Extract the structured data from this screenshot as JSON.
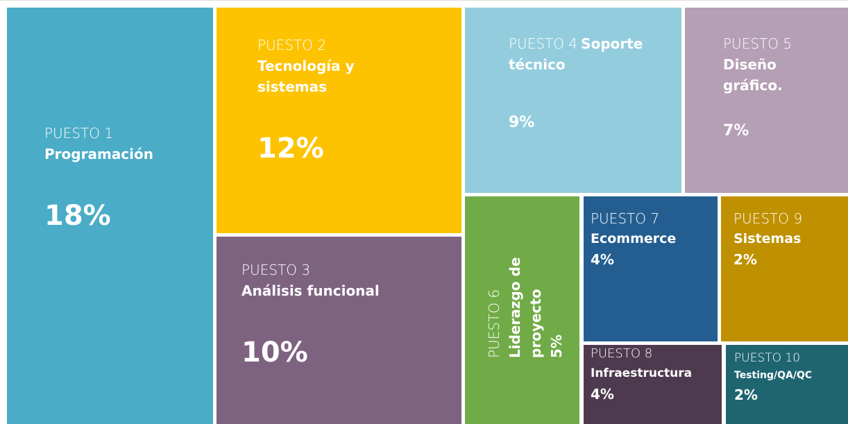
{
  "chart_data": {
    "type": "treemap",
    "ranks": [
      "PUESTO 1",
      "PUESTO 2",
      "PUESTO 3",
      "PUESTO 4",
      "PUESTO 5",
      "PUESTO 6",
      "PUESTO 7",
      "PUESTO 8",
      "PUESTO 9",
      "PUESTO 10"
    ],
    "categories": [
      "Programación",
      "Tecnología y sistemas",
      "Análisis funcional",
      "Soporte técnico",
      "Diseño gráfico.",
      "Liderazgo de proyecto",
      "Ecommerce",
      "Infraestructura",
      "Sistemas",
      "Testing/QA/QC"
    ],
    "values": [
      18,
      12,
      10,
      9,
      7,
      5,
      4,
      4,
      2,
      2
    ],
    "value_labels": [
      "18%",
      "12%",
      "10%",
      "9%",
      "7%",
      "5%",
      "4%",
      "4%",
      "2%",
      "2%"
    ],
    "colors": [
      "#4aacc6",
      "#fdc300",
      "#7e6381",
      "#93cddd",
      "#b59fb5",
      "#71ab48",
      "#245e91",
      "#4e3a4e",
      "#bf9000",
      "#1f6570"
    ]
  }
}
